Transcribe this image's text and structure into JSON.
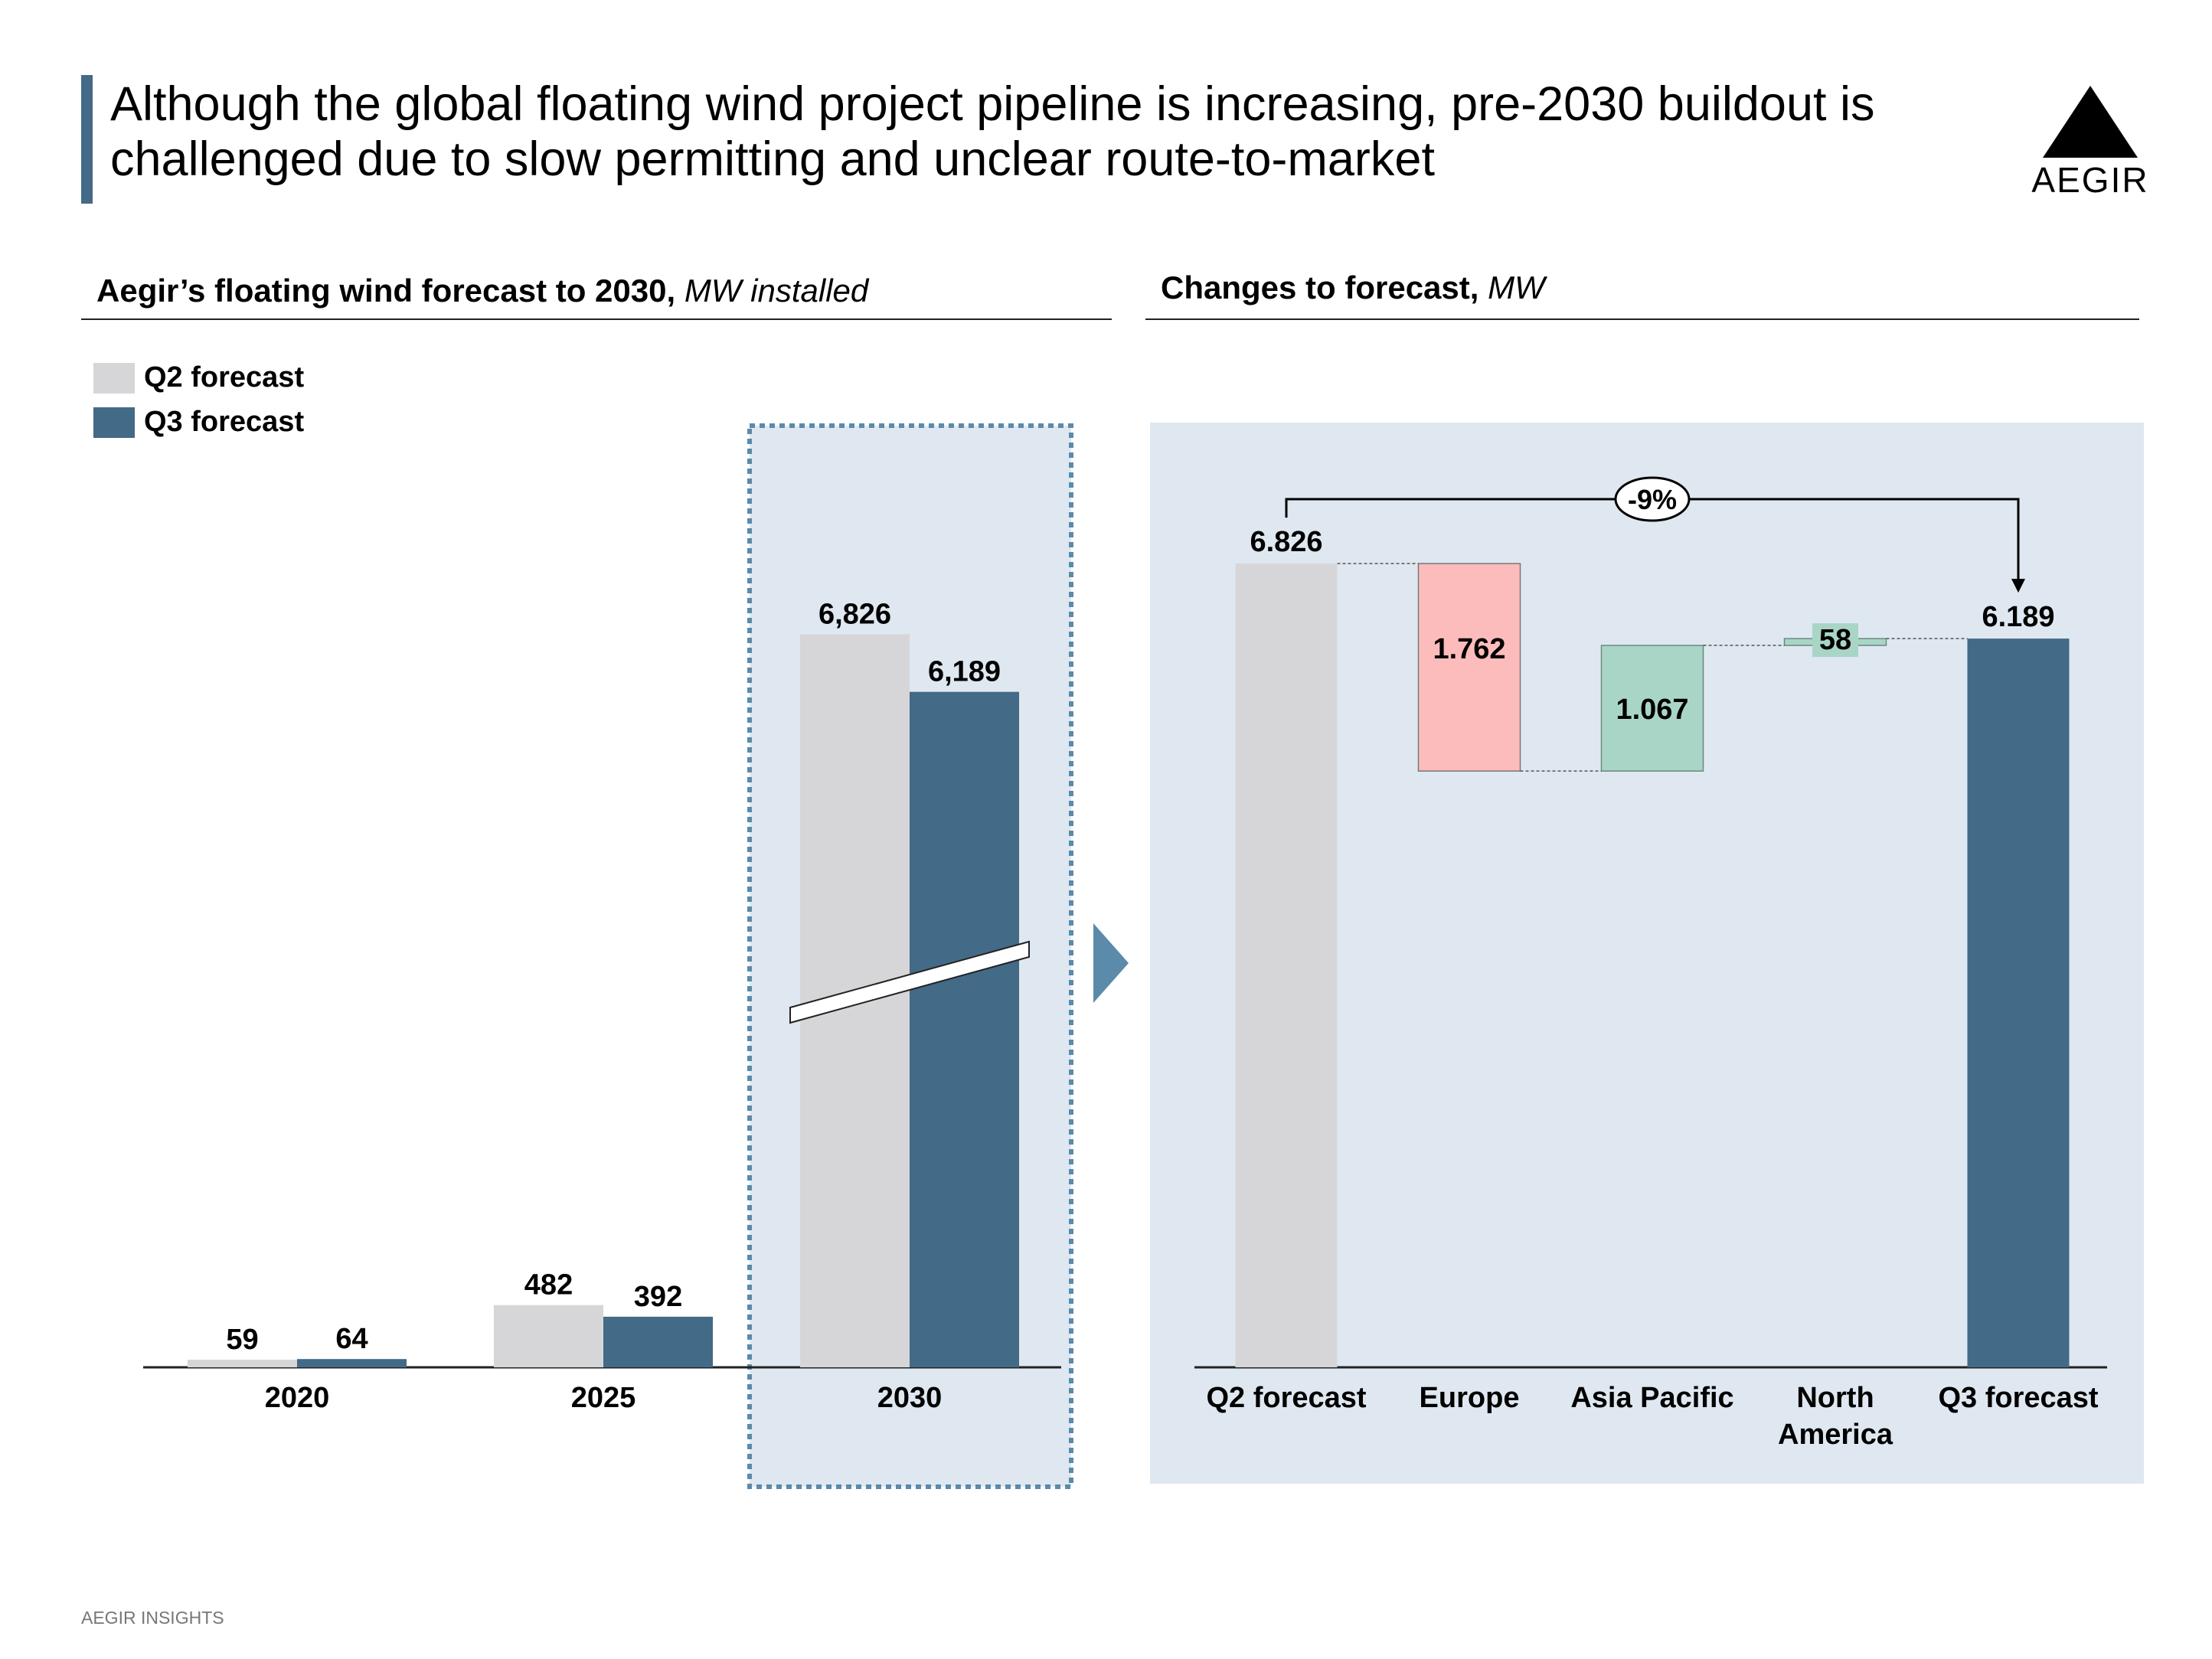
{
  "title": "Although the global floating wind project pipeline is increasing, pre-2030 buildout is challenged due to slow permitting and unclear route-to-market",
  "logo": {
    "text": "AEGIR",
    "icon": "triangle-logo-icon"
  },
  "left_panel": {
    "heading_bold": "Aegir’s floating wind forecast to 2030,",
    "heading_unit": "MW installed"
  },
  "right_panel": {
    "heading_bold": "Changes to forecast,",
    "heading_unit": "MW"
  },
  "legend": [
    {
      "label": "Q2 forecast",
      "color": "#d6d6d8"
    },
    {
      "label": "Q3 forecast",
      "color": "#436a87"
    }
  ],
  "colors": {
    "q2": "#d6d6d8",
    "q3": "#436a87",
    "decrease": "#fdbcbc",
    "increase": "#a9d5c7",
    "highlight_bg": "#dfe8f0",
    "accent": "#436a87",
    "arrow": "#5b8aaa"
  },
  "footer": "AEGIR INSIGHTS",
  "chart_data": [
    {
      "type": "bar",
      "title": "Aegir’s floating wind forecast to 2030",
      "ylabel": "MW installed",
      "categories": [
        "2020",
        "2025",
        "2030"
      ],
      "series": [
        {
          "name": "Q2 forecast",
          "values": [
            59,
            482,
            6826
          ],
          "labels": [
            "59",
            "482",
            "6,826"
          ]
        },
        {
          "name": "Q3 forecast",
          "values": [
            64,
            392,
            6189
          ],
          "labels": [
            "64",
            "392",
            "6,189"
          ]
        }
      ],
      "axis_break": "2030",
      "highlight": "2030"
    },
    {
      "type": "waterfall",
      "title": "Changes to forecast",
      "ylabel": "MW",
      "categories": [
        "Q2 forecast",
        "Europe",
        "Asia Pacific",
        "North America",
        "Q3 forecast"
      ],
      "values": [
        6826,
        -1762,
        1067,
        58,
        6189
      ],
      "labels": [
        "6.826",
        "1.762",
        "1.067",
        "58",
        "6.189"
      ],
      "kinds": [
        "total",
        "decrease",
        "increase",
        "increase",
        "total"
      ],
      "change_label": "-9%"
    }
  ]
}
